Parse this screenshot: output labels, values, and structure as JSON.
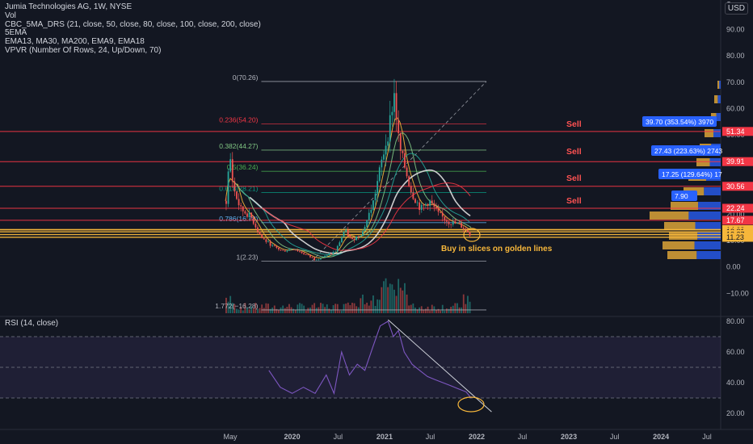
{
  "legend": {
    "title": "Jumia Technologies AG, 1W, NYSE",
    "lines": [
      "Vol",
      "CBC_5MA_DRS (21, close, 50, close, 80, close, 100, close, 200, close)",
      "5EMA",
      "EMA13, MA30, MA200, EMA9, EMA18",
      "VPVR (Number Of Rows, 24, Up/Down, 70)"
    ]
  },
  "currency": "USD",
  "rsi_legend": "RSI (14, close)",
  "colors": {
    "background": "#131722",
    "up": "#26a69a",
    "down": "#ef5350",
    "sell_line": "#f23645",
    "golden_line": "#f7b73b",
    "fib_line": "#7fb77e",
    "rsi_line": "#7e57c2",
    "annotation_sell": "#ff5252",
    "annotation_buy": "#f7b73b",
    "vp_up": "#2962ff",
    "vp_down": "#f7b73b"
  },
  "chart_data": [
    {
      "type": "candlestick",
      "title": "Jumia Technologies AG, 1W, NYSE",
      "ylim": [
        -16,
        100
      ],
      "y_ticks": [
        -10,
        0,
        10,
        20,
        30,
        40,
        50,
        60,
        70,
        80,
        90
      ],
      "y_tick_labels": [
        "−10.00",
        "0.00",
        "10.00",
        "20.00",
        "30.00",
        "40.00",
        "50.00",
        "60.00",
        "70.00",
        "80.00",
        "90.00"
      ],
      "x_tick_labels": [
        "May",
        "2020",
        "Jul",
        "2021",
        "Jul",
        "2022",
        "Jul",
        "2023",
        "Jul",
        "2024",
        "Jul"
      ],
      "x_ticks": [
        "2019-05-01",
        "2020-01-01",
        "2020-07-01",
        "2021-01-01",
        "2021-07-01",
        "2022-01-01",
        "2022-07-01",
        "2023-01-01",
        "2023-07-01",
        "2024-01-01",
        "2024-07-01"
      ],
      "price_path": [
        {
          "date": "2019-04-12",
          "close": 25
        },
        {
          "date": "2019-04-26",
          "close": 43
        },
        {
          "date": "2019-05-10",
          "close": 30
        },
        {
          "date": "2019-06-07",
          "close": 22
        },
        {
          "date": "2019-07-19",
          "close": 19
        },
        {
          "date": "2019-08-30",
          "close": 11
        },
        {
          "date": "2019-10-11",
          "close": 8
        },
        {
          "date": "2019-11-22",
          "close": 6
        },
        {
          "date": "2020-01-03",
          "close": 7
        },
        {
          "date": "2020-02-14",
          "close": 5
        },
        {
          "date": "2020-03-27",
          "close": 3
        },
        {
          "date": "2020-05-08",
          "close": 4
        },
        {
          "date": "2020-06-19",
          "close": 6
        },
        {
          "date": "2020-07-24",
          "close": 14
        },
        {
          "date": "2020-08-21",
          "close": 10
        },
        {
          "date": "2020-10-02",
          "close": 13
        },
        {
          "date": "2020-11-13",
          "close": 24
        },
        {
          "date": "2020-12-18",
          "close": 40
        },
        {
          "date": "2021-01-15",
          "close": 52
        },
        {
          "date": "2021-02-05",
          "close": 66
        },
        {
          "date": "2021-02-26",
          "close": 45
        },
        {
          "date": "2021-03-19",
          "close": 38
        },
        {
          "date": "2021-04-16",
          "close": 28
        },
        {
          "date": "2021-05-21",
          "close": 22
        },
        {
          "date": "2021-06-25",
          "close": 25
        },
        {
          "date": "2021-07-30",
          "close": 20
        },
        {
          "date": "2021-09-10",
          "close": 17
        },
        {
          "date": "2021-10-22",
          "close": 16
        },
        {
          "date": "2021-11-19",
          "close": 14
        },
        {
          "date": "2021-12-10",
          "close": 11.5
        }
      ],
      "horizontal_lines": [
        {
          "label": "Sell",
          "value": 51.34
        },
        {
          "label": "Sell",
          "value": 39.91
        },
        {
          "label": "Sell",
          "value": 30.56
        },
        {
          "label": "Sell",
          "value": 22.24
        },
        {
          "label": "",
          "value": 17.67
        },
        {
          "label": "",
          "value": 14.14
        },
        {
          "label": "",
          "value": 14.09
        },
        {
          "label": "",
          "value": 13.31
        },
        {
          "label": "",
          "value": 12.27
        },
        {
          "label": "",
          "value": 11.23
        }
      ],
      "price_labels": [
        "51.34",
        "39.91",
        "30.56",
        "22.24",
        "17.67",
        "14.14",
        "14.09",
        "13.31",
        "12.27",
        "11.23"
      ],
      "fib_retracement": {
        "start_date": "2019-09-01",
        "levels": [
          {
            "label": "0(70.26)",
            "value": 70.26
          },
          {
            "label": "0.236(54.20)",
            "value": 54.2
          },
          {
            "label": "0.382(44.27)",
            "value": 44.27
          },
          {
            "label": "0.5(36.24)",
            "value": 36.24
          },
          {
            "label": "0.618(28.21)",
            "value": 28.21
          },
          {
            "label": "0.786(16.78)",
            "value": 16.78
          },
          {
            "label": "1(2.23)",
            "value": 2.23
          },
          {
            "label": "1.772(−16.28)",
            "value": -16.28
          }
        ]
      },
      "measure_labels": [
        "39.70 (353.54%) 3970",
        "27.43 (223.63%) 2743",
        "17.25 (129.64%) 17",
        "7.90"
      ],
      "annotations": [
        "Sell",
        "Sell",
        "Sell",
        "Sell",
        "Buy in slices on golden lines"
      ]
    },
    {
      "type": "line",
      "title": "RSI (14, close)",
      "ylim": [
        12,
        84
      ],
      "y_ticks": [
        20,
        40,
        60,
        80
      ],
      "y_tick_labels": [
        "20.00",
        "40.00",
        "60.00",
        "80.00"
      ],
      "bands": [
        70,
        50,
        30
      ],
      "x": [
        "2019-10-01",
        "2019-11-15",
        "2020-01-01",
        "2020-02-15",
        "2020-04-01",
        "2020-05-15",
        "2020-06-15",
        "2020-07-15",
        "2020-08-15",
        "2020-09-15",
        "2020-10-15",
        "2020-11-15",
        "2020-12-15",
        "2021-01-15",
        "2021-02-05",
        "2021-02-25",
        "2021-03-20",
        "2021-04-20",
        "2021-05-20",
        "2021-06-20",
        "2021-07-20",
        "2021-08-20",
        "2021-09-20",
        "2021-10-20",
        "2021-11-20",
        "2021-12-10"
      ],
      "values": [
        48,
        37,
        33,
        37,
        33,
        45,
        33,
        60,
        45,
        52,
        48,
        63,
        77,
        80,
        70,
        74,
        60,
        52,
        48,
        44,
        42,
        40,
        38,
        36,
        34,
        30
      ],
      "trendline": [
        {
          "date": "2021-01-15",
          "value": 81
        },
        {
          "date": "2022-03-01",
          "value": 21
        }
      ]
    }
  ]
}
